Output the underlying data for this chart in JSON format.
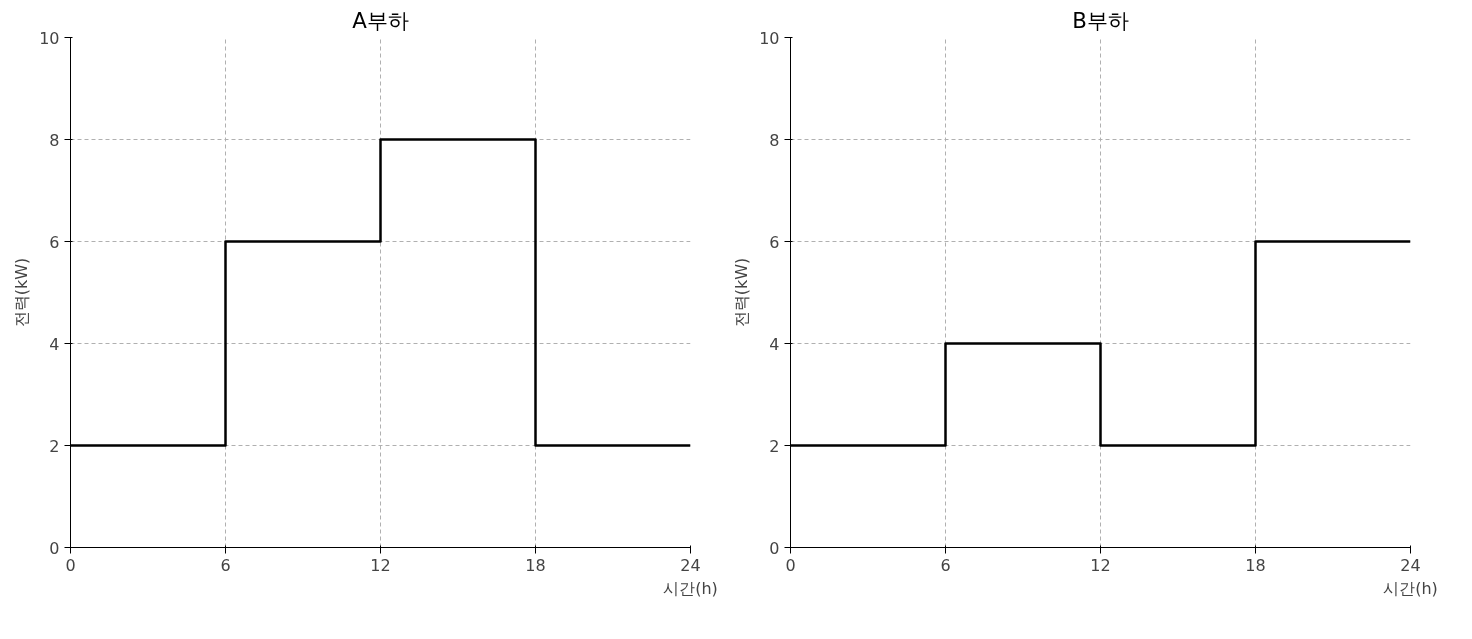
{
  "chart_data": [
    {
      "type": "step",
      "title": "A부하",
      "xlabel": "시간(h)",
      "ylabel": "전력(kW)",
      "x": [
        0,
        6,
        12,
        18,
        24
      ],
      "series": [
        {
          "color": "#000000",
          "values": [
            2,
            6,
            8,
            2,
            2
          ]
        }
      ],
      "xlim": [
        0,
        24
      ],
      "ylim": [
        0,
        10
      ],
      "xticks": [
        0,
        6,
        12,
        18,
        24
      ],
      "yticks": [
        0,
        2,
        4,
        6,
        8,
        10
      ],
      "grid": true,
      "line_style": "solid",
      "marker": "none"
    },
    {
      "type": "step",
      "title": "B부하",
      "xlabel": "시간(h)",
      "ylabel": "전력(kW)",
      "x": [
        0,
        6,
        12,
        18,
        24
      ],
      "series": [
        {
          "color": "#000000",
          "values": [
            2,
            4,
            2,
            6,
            6
          ]
        }
      ],
      "xlim": [
        0,
        24
      ],
      "ylim": [
        0,
        10
      ],
      "xticks": [
        0,
        6,
        12,
        18,
        24
      ],
      "yticks": [
        0,
        2,
        4,
        6,
        8,
        10
      ],
      "grid": true,
      "line_style": "solid",
      "marker": "none"
    }
  ]
}
